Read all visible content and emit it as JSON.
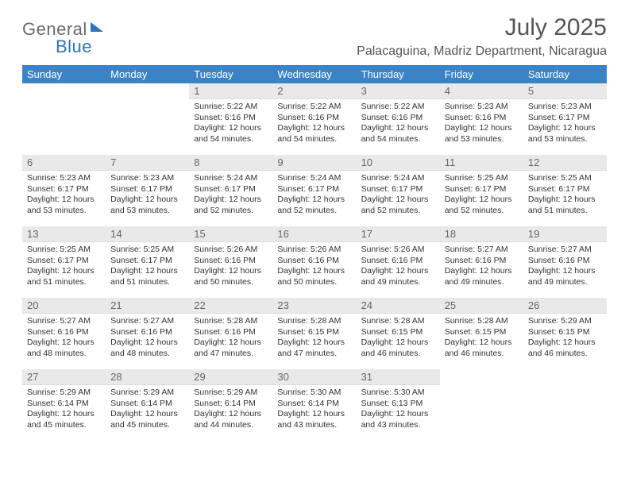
{
  "brand": {
    "word1": "General",
    "word2": "Blue"
  },
  "month_title": "July 2025",
  "location": "Palacaguina, Madriz Department, Nicaragua",
  "colors": {
    "header_bg": "#3a83c6",
    "header_text": "#ffffff",
    "band_bg": "#e9e9e9",
    "band_text": "#666666",
    "body_text": "#333333",
    "title_text": "#555555",
    "logo_gray": "#6a6a6a",
    "logo_blue": "#2f74b5",
    "page_bg": "#ffffff"
  },
  "day_headers": [
    "Sunday",
    "Monday",
    "Tuesday",
    "Wednesday",
    "Thursday",
    "Friday",
    "Saturday"
  ],
  "weeks": [
    [
      {
        "blank": true
      },
      {
        "blank": true
      },
      {
        "num": "1",
        "sunrise": "Sunrise: 5:22 AM",
        "sunset": "Sunset: 6:16 PM",
        "day1": "Daylight: 12 hours",
        "day2": "and 54 minutes."
      },
      {
        "num": "2",
        "sunrise": "Sunrise: 5:22 AM",
        "sunset": "Sunset: 6:16 PM",
        "day1": "Daylight: 12 hours",
        "day2": "and 54 minutes."
      },
      {
        "num": "3",
        "sunrise": "Sunrise: 5:22 AM",
        "sunset": "Sunset: 6:16 PM",
        "day1": "Daylight: 12 hours",
        "day2": "and 54 minutes."
      },
      {
        "num": "4",
        "sunrise": "Sunrise: 5:23 AM",
        "sunset": "Sunset: 6:16 PM",
        "day1": "Daylight: 12 hours",
        "day2": "and 53 minutes."
      },
      {
        "num": "5",
        "sunrise": "Sunrise: 5:23 AM",
        "sunset": "Sunset: 6:17 PM",
        "day1": "Daylight: 12 hours",
        "day2": "and 53 minutes."
      }
    ],
    [
      {
        "num": "6",
        "sunrise": "Sunrise: 5:23 AM",
        "sunset": "Sunset: 6:17 PM",
        "day1": "Daylight: 12 hours",
        "day2": "and 53 minutes."
      },
      {
        "num": "7",
        "sunrise": "Sunrise: 5:23 AM",
        "sunset": "Sunset: 6:17 PM",
        "day1": "Daylight: 12 hours",
        "day2": "and 53 minutes."
      },
      {
        "num": "8",
        "sunrise": "Sunrise: 5:24 AM",
        "sunset": "Sunset: 6:17 PM",
        "day1": "Daylight: 12 hours",
        "day2": "and 52 minutes."
      },
      {
        "num": "9",
        "sunrise": "Sunrise: 5:24 AM",
        "sunset": "Sunset: 6:17 PM",
        "day1": "Daylight: 12 hours",
        "day2": "and 52 minutes."
      },
      {
        "num": "10",
        "sunrise": "Sunrise: 5:24 AM",
        "sunset": "Sunset: 6:17 PM",
        "day1": "Daylight: 12 hours",
        "day2": "and 52 minutes."
      },
      {
        "num": "11",
        "sunrise": "Sunrise: 5:25 AM",
        "sunset": "Sunset: 6:17 PM",
        "day1": "Daylight: 12 hours",
        "day2": "and 52 minutes."
      },
      {
        "num": "12",
        "sunrise": "Sunrise: 5:25 AM",
        "sunset": "Sunset: 6:17 PM",
        "day1": "Daylight: 12 hours",
        "day2": "and 51 minutes."
      }
    ],
    [
      {
        "num": "13",
        "sunrise": "Sunrise: 5:25 AM",
        "sunset": "Sunset: 6:17 PM",
        "day1": "Daylight: 12 hours",
        "day2": "and 51 minutes."
      },
      {
        "num": "14",
        "sunrise": "Sunrise: 5:25 AM",
        "sunset": "Sunset: 6:17 PM",
        "day1": "Daylight: 12 hours",
        "day2": "and 51 minutes."
      },
      {
        "num": "15",
        "sunrise": "Sunrise: 5:26 AM",
        "sunset": "Sunset: 6:16 PM",
        "day1": "Daylight: 12 hours",
        "day2": "and 50 minutes."
      },
      {
        "num": "16",
        "sunrise": "Sunrise: 5:26 AM",
        "sunset": "Sunset: 6:16 PM",
        "day1": "Daylight: 12 hours",
        "day2": "and 50 minutes."
      },
      {
        "num": "17",
        "sunrise": "Sunrise: 5:26 AM",
        "sunset": "Sunset: 6:16 PM",
        "day1": "Daylight: 12 hours",
        "day2": "and 49 minutes."
      },
      {
        "num": "18",
        "sunrise": "Sunrise: 5:27 AM",
        "sunset": "Sunset: 6:16 PM",
        "day1": "Daylight: 12 hours",
        "day2": "and 49 minutes."
      },
      {
        "num": "19",
        "sunrise": "Sunrise: 5:27 AM",
        "sunset": "Sunset: 6:16 PM",
        "day1": "Daylight: 12 hours",
        "day2": "and 49 minutes."
      }
    ],
    [
      {
        "num": "20",
        "sunrise": "Sunrise: 5:27 AM",
        "sunset": "Sunset: 6:16 PM",
        "day1": "Daylight: 12 hours",
        "day2": "and 48 minutes."
      },
      {
        "num": "21",
        "sunrise": "Sunrise: 5:27 AM",
        "sunset": "Sunset: 6:16 PM",
        "day1": "Daylight: 12 hours",
        "day2": "and 48 minutes."
      },
      {
        "num": "22",
        "sunrise": "Sunrise: 5:28 AM",
        "sunset": "Sunset: 6:16 PM",
        "day1": "Daylight: 12 hours",
        "day2": "and 47 minutes."
      },
      {
        "num": "23",
        "sunrise": "Sunrise: 5:28 AM",
        "sunset": "Sunset: 6:15 PM",
        "day1": "Daylight: 12 hours",
        "day2": "and 47 minutes."
      },
      {
        "num": "24",
        "sunrise": "Sunrise: 5:28 AM",
        "sunset": "Sunset: 6:15 PM",
        "day1": "Daylight: 12 hours",
        "day2": "and 46 minutes."
      },
      {
        "num": "25",
        "sunrise": "Sunrise: 5:28 AM",
        "sunset": "Sunset: 6:15 PM",
        "day1": "Daylight: 12 hours",
        "day2": "and 46 minutes."
      },
      {
        "num": "26",
        "sunrise": "Sunrise: 5:29 AM",
        "sunset": "Sunset: 6:15 PM",
        "day1": "Daylight: 12 hours",
        "day2": "and 46 minutes."
      }
    ],
    [
      {
        "num": "27",
        "sunrise": "Sunrise: 5:29 AM",
        "sunset": "Sunset: 6:14 PM",
        "day1": "Daylight: 12 hours",
        "day2": "and 45 minutes."
      },
      {
        "num": "28",
        "sunrise": "Sunrise: 5:29 AM",
        "sunset": "Sunset: 6:14 PM",
        "day1": "Daylight: 12 hours",
        "day2": "and 45 minutes."
      },
      {
        "num": "29",
        "sunrise": "Sunrise: 5:29 AM",
        "sunset": "Sunset: 6:14 PM",
        "day1": "Daylight: 12 hours",
        "day2": "and 44 minutes."
      },
      {
        "num": "30",
        "sunrise": "Sunrise: 5:30 AM",
        "sunset": "Sunset: 6:14 PM",
        "day1": "Daylight: 12 hours",
        "day2": "and 43 minutes."
      },
      {
        "num": "31",
        "sunrise": "Sunrise: 5:30 AM",
        "sunset": "Sunset: 6:13 PM",
        "day1": "Daylight: 12 hours",
        "day2": "and 43 minutes."
      },
      {
        "blank": true
      },
      {
        "blank": true
      }
    ]
  ]
}
